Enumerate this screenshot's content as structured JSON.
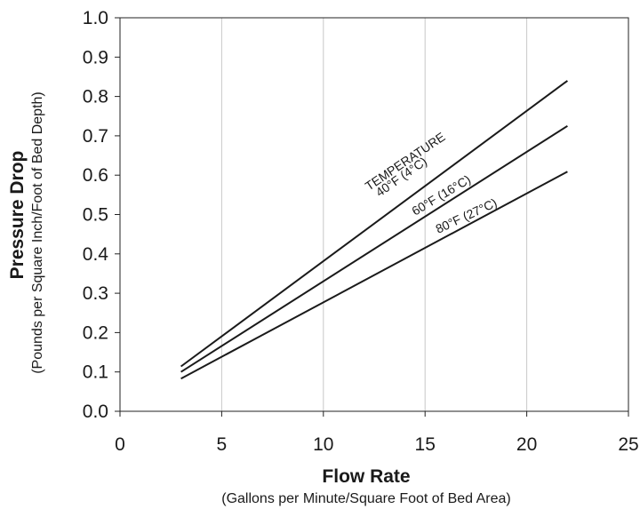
{
  "chart_data": {
    "type": "line",
    "title": "",
    "xlabel": "Flow Rate",
    "xlabel_sub": "(Gallons per Minute/Square Foot of Bed Area)",
    "ylabel": "Pressure Drop",
    "ylabel_sub": "(Pounds per Square Inch/Foot of Bed Depth)",
    "xlim": [
      0,
      25
    ],
    "ylim": [
      0,
      1.0
    ],
    "x_ticks": [
      "0",
      "5",
      "10",
      "15",
      "20",
      "25"
    ],
    "y_ticks": [
      "0.0",
      "0.1",
      "0.2",
      "0.3",
      "0.4",
      "0.5",
      "0.6",
      "0.7",
      "0.8",
      "0.9",
      "1.0"
    ],
    "grid": "vertical",
    "annotation": "TEMPERATURE",
    "series": [
      {
        "name": "40°F (4°C)",
        "x": [
          3,
          22
        ],
        "y": [
          0.114,
          0.84
        ]
      },
      {
        "name": "60°F (16°C)",
        "x": [
          3,
          22
        ],
        "y": [
          0.1,
          0.725
        ]
      },
      {
        "name": "80°F (27°C)",
        "x": [
          3,
          22
        ],
        "y": [
          0.083,
          0.609
        ]
      }
    ]
  }
}
